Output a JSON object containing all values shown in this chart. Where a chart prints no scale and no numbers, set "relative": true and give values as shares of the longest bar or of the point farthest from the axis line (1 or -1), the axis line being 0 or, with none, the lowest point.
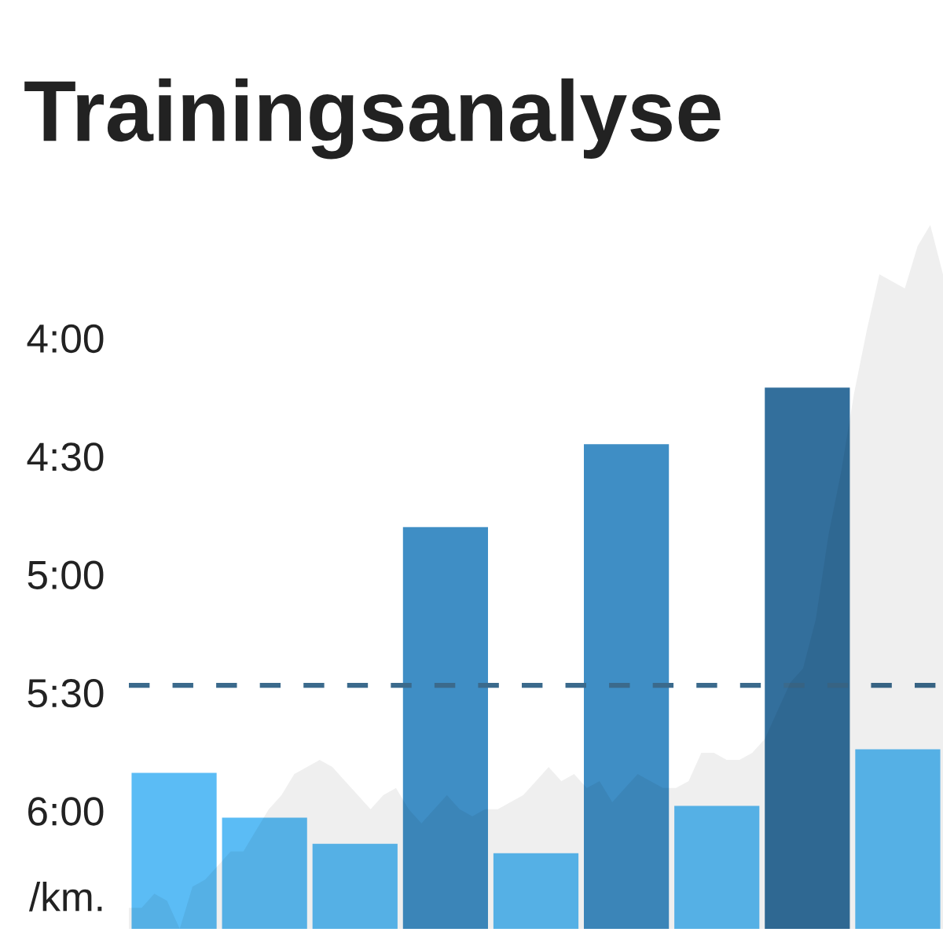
{
  "chart_data": [
    {
      "type": "bar",
      "title": "Trainingsanalyse",
      "ylabel": "/km.",
      "categories": [
        null,
        null,
        null,
        null,
        null,
        null,
        null,
        null,
        null
      ],
      "base": [
        6.5,
        6.5,
        6.5,
        6.5,
        6.5,
        6.5,
        6.5,
        6.5,
        6.5
      ],
      "values": [
        -0.66,
        -0.47,
        -0.36,
        -1.7,
        -0.32,
        -2.05,
        -0.52,
        -2.29,
        -0.76
      ],
      "colors": [
        "#5bbcf5",
        "#5bbcf5",
        "#5bbcf5",
        "#3f8ec5",
        "#5bbcf5",
        "#3f8ec5",
        "#5bbcf5",
        "#336f9c",
        "#5bbcf5"
      ],
      "ylim": [
        6.5,
        4
      ],
      "yticks": [
        {
          "value": 4,
          "label": "4:00"
        },
        {
          "value": 4.5,
          "label": "4:30"
        },
        {
          "value": 5,
          "label": "5:00"
        },
        {
          "value": 5.5,
          "label": "5:30"
        },
        {
          "value": 6,
          "label": "6:00"
        }
      ],
      "ref_lines": [
        {
          "axis": "y",
          "value": 5.47,
          "color": "#3b6a8c",
          "line_style": "dashed"
        }
      ],
      "tick_labels": "y",
      "grid": false
    },
    {
      "type": "area",
      "relative": true,
      "color": "#efefef",
      "tick_labels": false,
      "categories": [
        null,
        null,
        null,
        null,
        null,
        null,
        null,
        null,
        null,
        null,
        null,
        null,
        null,
        null,
        null,
        null,
        null,
        null,
        null,
        null,
        null,
        null,
        null,
        null,
        null,
        null,
        null,
        null,
        null,
        null,
        null,
        null,
        null,
        null,
        null,
        null,
        null,
        null,
        null,
        null,
        null,
        null,
        null,
        null,
        null,
        null,
        null,
        null,
        null,
        null,
        null,
        null,
        null,
        null,
        null,
        null,
        null,
        null,
        null,
        null,
        null,
        null,
        null,
        null,
        null
      ],
      "values": [
        0.03,
        0.03,
        0.05,
        0.04,
        0.0,
        0.06,
        0.07,
        0.09,
        0.11,
        0.11,
        0.14,
        0.17,
        0.19,
        0.22,
        0.23,
        0.24,
        0.23,
        0.21,
        0.19,
        0.17,
        0.19,
        0.2,
        0.17,
        0.15,
        0.17,
        0.19,
        0.17,
        0.16,
        0.17,
        0.17,
        0.18,
        0.19,
        0.21,
        0.23,
        0.21,
        0.22,
        0.2,
        0.21,
        0.18,
        0.2,
        0.22,
        0.21,
        0.2,
        0.2,
        0.21,
        0.25,
        0.25,
        0.24,
        0.24,
        0.25,
        0.27,
        0.31,
        0.35,
        0.37,
        0.44,
        0.56,
        0.65,
        0.76,
        0.85,
        0.93,
        0.92,
        0.91,
        0.97,
        1.0,
        0.93
      ]
    }
  ]
}
